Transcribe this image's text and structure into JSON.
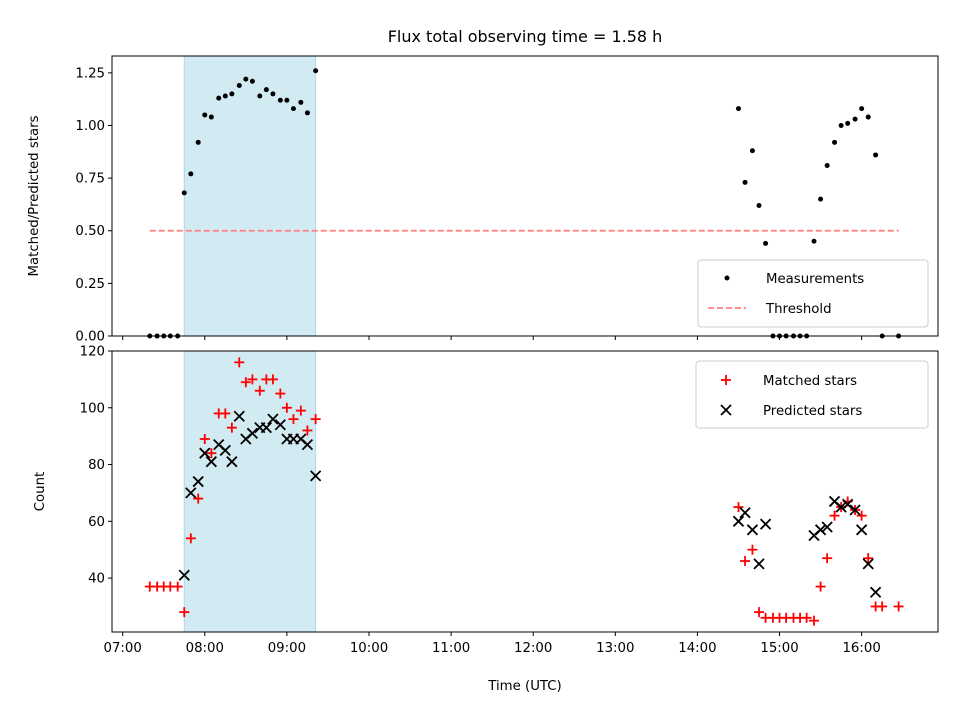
{
  "chart_data": [
    {
      "type": "scatter",
      "title": "Flux total observing time = 1.58 h",
      "xlabel": "",
      "ylabel": "Matched/Predicted stars",
      "xlim": [
        6.87,
        16.93
      ],
      "ylim": [
        0,
        1.33
      ],
      "yticks": [
        0.0,
        0.25,
        0.5,
        0.75,
        1.0,
        1.25
      ],
      "yticklabels": [
        "0.00",
        "0.25",
        "0.50",
        "0.75",
        "1.00",
        "1.25"
      ],
      "shaded_interval": [
        7.75,
        9.35
      ],
      "legend_position": "lower-right",
      "series": [
        {
          "name": "Measurements",
          "marker": "dot",
          "color": "#000000",
          "x": [
            7.33,
            7.42,
            7.5,
            7.58,
            7.67,
            7.75,
            7.83,
            7.92,
            8.0,
            8.08,
            8.17,
            8.25,
            8.33,
            8.42,
            8.5,
            8.58,
            8.67,
            8.75,
            8.83,
            8.92,
            9.0,
            9.08,
            9.17,
            9.25,
            9.35,
            14.5,
            14.58,
            14.67,
            14.75,
            14.83,
            14.92,
            15.0,
            15.08,
            15.17,
            15.25,
            15.33,
            15.42,
            15.5,
            15.58,
            15.67,
            15.75,
            15.83,
            15.92,
            16.0,
            16.08,
            16.17,
            16.25,
            16.45
          ],
          "y": [
            0,
            0,
            0,
            0,
            0,
            0.68,
            0.77,
            0.92,
            1.05,
            1.04,
            1.13,
            1.14,
            1.15,
            1.19,
            1.22,
            1.21,
            1.14,
            1.17,
            1.15,
            1.12,
            1.12,
            1.08,
            1.11,
            1.06,
            1.26,
            1.08,
            0.73,
            0.88,
            0.62,
            0.44,
            0,
            0,
            0,
            0,
            0,
            0,
            0.45,
            0.65,
            0.81,
            0.92,
            1.0,
            1.01,
            1.03,
            1.08,
            1.04,
            0.86,
            0,
            0
          ]
        },
        {
          "name": "Threshold",
          "marker": "dashed-line",
          "color": "#ff7f7f",
          "x": [
            7.33,
            16.45
          ],
          "y": [
            0.5,
            0.5
          ]
        }
      ]
    },
    {
      "type": "scatter",
      "title": "",
      "xlabel": "Time (UTC)",
      "ylabel": "Count",
      "xlim": [
        6.87,
        16.93
      ],
      "ylim": [
        21,
        120
      ],
      "xticks": [
        7,
        8,
        9,
        10,
        11,
        12,
        13,
        14,
        15,
        16
      ],
      "xticklabels": [
        "07:00",
        "08:00",
        "09:00",
        "10:00",
        "11:00",
        "12:00",
        "13:00",
        "14:00",
        "15:00",
        "16:00"
      ],
      "yticks": [
        40,
        60,
        80,
        100,
        120
      ],
      "yticklabels": [
        "40",
        "60",
        "80",
        "100",
        "120"
      ],
      "shaded_interval": [
        7.75,
        9.35
      ],
      "legend_position": "upper-right",
      "series": [
        {
          "name": "Matched stars",
          "marker": "plus",
          "color": "#ff0000",
          "x": [
            7.33,
            7.42,
            7.5,
            7.58,
            7.67,
            7.75,
            7.83,
            7.92,
            8.0,
            8.08,
            8.17,
            8.25,
            8.33,
            8.42,
            8.5,
            8.58,
            8.67,
            8.75,
            8.83,
            8.92,
            9.0,
            9.08,
            9.17,
            9.25,
            9.35,
            14.5,
            14.58,
            14.67,
            14.75,
            14.83,
            14.92,
            15.0,
            15.08,
            15.17,
            15.25,
            15.33,
            15.42,
            15.5,
            15.58,
            15.67,
            15.75,
            15.83,
            15.92,
            16.0,
            16.08,
            16.17,
            16.25,
            16.45
          ],
          "y": [
            37,
            37,
            37,
            37,
            37,
            28,
            54,
            68,
            89,
            84,
            98,
            98,
            93,
            116,
            109,
            110,
            106,
            110,
            110,
            105,
            100,
            96,
            99,
            92,
            96,
            65,
            46,
            50,
            28,
            26,
            26,
            26,
            26,
            26,
            26,
            26,
            25,
            37,
            47,
            62,
            65,
            67,
            64,
            62,
            47,
            30,
            30,
            30
          ]
        },
        {
          "name": "Predicted stars",
          "marker": "x",
          "color": "#000000",
          "x": [
            7.75,
            7.83,
            7.92,
            8.0,
            8.08,
            8.17,
            8.25,
            8.33,
            8.42,
            8.5,
            8.58,
            8.67,
            8.75,
            8.83,
            8.92,
            9.0,
            9.08,
            9.17,
            9.25,
            9.35,
            14.5,
            14.58,
            14.67,
            14.75,
            14.83,
            15.42,
            15.5,
            15.58,
            15.67,
            15.75,
            15.83,
            15.92,
            16.0,
            16.08,
            16.17
          ],
          "y": [
            41,
            70,
            74,
            84,
            81,
            87,
            85,
            81,
            97,
            89,
            91,
            93,
            93,
            96,
            94,
            89,
            89,
            89,
            87,
            76,
            60,
            63,
            57,
            45,
            59,
            55,
            57,
            58,
            67,
            65,
            66,
            64,
            57,
            45,
            35
          ]
        }
      ]
    }
  ]
}
